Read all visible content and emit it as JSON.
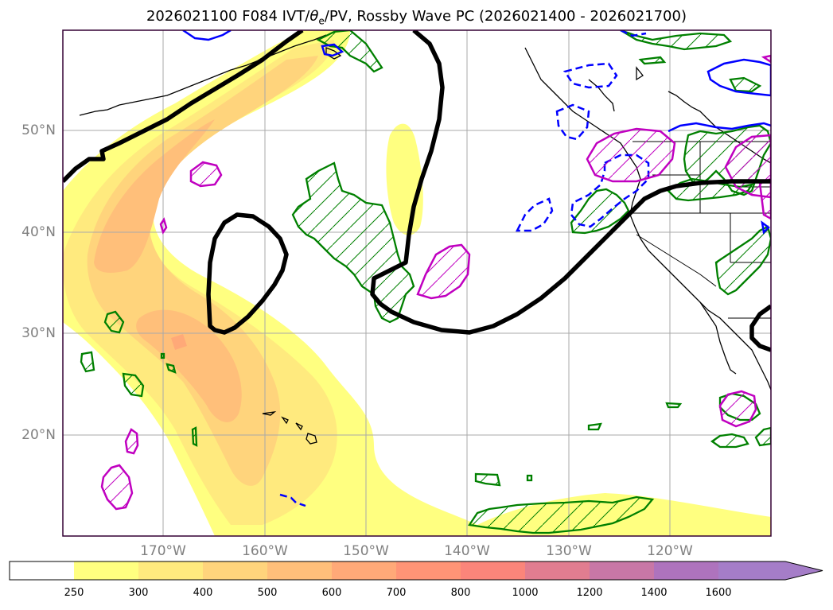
{
  "title": {
    "prefix": "2026021100 F084 IVT/",
    "theta": "θ",
    "theta_sub": "e",
    "suffix": "/PV, Rossby Wave PC (2026021400 - 2026021700)"
  },
  "axes": {
    "lat_labels": [
      "50°N",
      "40°N",
      "30°N",
      "20°N"
    ],
    "lon_labels": [
      "170°W",
      "160°W",
      "150°W",
      "140°W",
      "130°W",
      "120°W"
    ]
  },
  "colorbar": {
    "labels": [
      "250",
      "300",
      "400",
      "500",
      "600",
      "700",
      "800",
      "1000",
      "1200",
      "1400",
      "1600"
    ],
    "colors": [
      "#ffffff",
      "#ffff80",
      "#ffea7e",
      "#ffd47c",
      "#ffbf7a",
      "#ffa978",
      "#ff9476",
      "#fb857a",
      "#e17d90",
      "#c877a6",
      "#ae73bd",
      "#a57dc8"
    ]
  },
  "legend_colors": {
    "ivt_band_1": "#ffff80",
    "ivt_band_2": "#ffea7e",
    "ivt_band_3": "#ffd47c",
    "ivt_band_4": "#ffbf7a",
    "pv_contour": "#000000",
    "green_contour": "#008000",
    "blue_contour": "#0000ff",
    "magenta_contour": "#c000c0"
  }
}
